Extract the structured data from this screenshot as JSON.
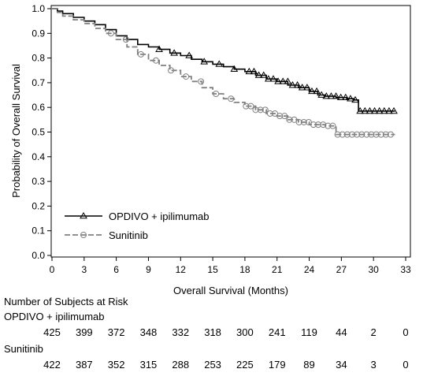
{
  "chart_data": {
    "type": "line",
    "title": "",
    "xlabel": "Overall Survival (Months)",
    "ylabel": "Probability of Overall Survival",
    "xlim": [
      0,
      33
    ],
    "ylim": [
      0,
      1.0
    ],
    "xticks": [
      "0",
      "3",
      "6",
      "9",
      "12",
      "15",
      "18",
      "21",
      "24",
      "27",
      "30",
      "33"
    ],
    "yticks": [
      "0.0",
      "0.1",
      "0.2",
      "0.3",
      "0.4",
      "0.5",
      "0.6",
      "0.7",
      "0.8",
      "0.9",
      "1.0"
    ],
    "legend_position": "bottom-left",
    "series": [
      {
        "name": "OPDIVO + ipilimumab",
        "color": "#000000",
        "line_style": "solid",
        "marker": "triangle",
        "x": [
          0,
          0.5,
          1,
          2,
          3,
          4,
          5,
          6,
          7,
          8,
          9,
          10,
          11,
          12,
          13,
          14,
          15,
          16,
          17,
          18,
          19,
          20,
          21,
          22,
          23,
          24,
          24.8,
          25.5,
          26.5,
          27.5,
          28.2,
          28.6,
          32
        ],
        "y": [
          1.0,
          0.99,
          0.98,
          0.965,
          0.95,
          0.935,
          0.915,
          0.89,
          0.875,
          0.855,
          0.845,
          0.835,
          0.82,
          0.81,
          0.795,
          0.785,
          0.775,
          0.765,
          0.755,
          0.745,
          0.73,
          0.715,
          0.705,
          0.69,
          0.68,
          0.665,
          0.65,
          0.645,
          0.64,
          0.635,
          0.63,
          0.585,
          0.585
        ]
      },
      {
        "name": "Sunitinib",
        "color": "#808080",
        "line_style": "dashed",
        "marker": "circle",
        "x": [
          0,
          0.5,
          1,
          2,
          3,
          4,
          5,
          6,
          7,
          8,
          9,
          10,
          11,
          12,
          13,
          14,
          15,
          16,
          17,
          18,
          19,
          20,
          21,
          22,
          23,
          24,
          25.5,
          26.5,
          27,
          28,
          30,
          32
        ],
        "y": [
          1.0,
          0.985,
          0.97,
          0.955,
          0.94,
          0.92,
          0.9,
          0.875,
          0.845,
          0.815,
          0.79,
          0.77,
          0.75,
          0.725,
          0.705,
          0.68,
          0.655,
          0.635,
          0.62,
          0.605,
          0.59,
          0.575,
          0.565,
          0.55,
          0.54,
          0.53,
          0.525,
          0.49,
          0.49,
          0.49,
          0.49,
          0.49
        ]
      }
    ]
  },
  "risk_table": {
    "title": "Number of Subjects at Risk",
    "rows": [
      {
        "label": "OPDIVO + ipilimumab",
        "values": [
          "425",
          "399",
          "372",
          "348",
          "332",
          "318",
          "300",
          "241",
          "119",
          "44",
          "2",
          "0"
        ]
      },
      {
        "label": "Sunitinib",
        "values": [
          "422",
          "387",
          "352",
          "315",
          "288",
          "253",
          "225",
          "179",
          "89",
          "34",
          "3",
          "0"
        ]
      }
    ]
  }
}
